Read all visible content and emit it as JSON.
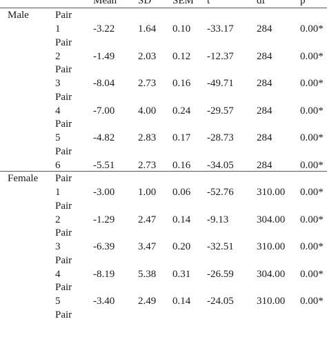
{
  "columns": [
    "Mean",
    "SD",
    "SEM",
    "t",
    "df",
    "p"
  ],
  "groups": [
    {
      "label": "Male",
      "rows": [
        {
          "pair": "Pair",
          "num": "1",
          "mean": "-3.22",
          "sd": "1.64",
          "sem": "0.10",
          "t": "-33.17",
          "df": "284",
          "p": "0.00*"
        },
        {
          "pair": "Pair",
          "num": "2",
          "mean": "-1.49",
          "sd": "2.03",
          "sem": "0.12",
          "t": "-12.37",
          "df": "284",
          "p": "0.00*"
        },
        {
          "pair": "Pair",
          "num": "3",
          "mean": "-8.04",
          "sd": "2.73",
          "sem": "0.16",
          "t": "-49.71",
          "df": "284",
          "p": "0.00*"
        },
        {
          "pair": "Pair",
          "num": "4",
          "mean": "-7.00",
          "sd": "4.00",
          "sem": "0.24",
          "t": "-29.57",
          "df": "284",
          "p": "0.00*"
        },
        {
          "pair": "Pair",
          "num": "5",
          "mean": "-4.82",
          "sd": "2.83",
          "sem": "0.17",
          "t": "-28.73",
          "df": "284",
          "p": "0.00*"
        },
        {
          "pair": "Pair",
          "num": "6",
          "mean": "-5.51",
          "sd": "2.73",
          "sem": "0.16",
          "t": "-34.05",
          "df": "284",
          "p": "0.00*"
        }
      ]
    },
    {
      "label": "Female",
      "rows": [
        {
          "pair": "Pair",
          "num": "1",
          "mean": "-3.00",
          "sd": "1.00",
          "sem": "0.06",
          "t": "-52.76",
          "df": "310.00",
          "p": "0.00*"
        },
        {
          "pair": "Pair",
          "num": "2",
          "mean": "-1.29",
          "sd": "2.47",
          "sem": "0.14",
          "t": "-9.13",
          "df": "304.00",
          "p": "0.00*"
        },
        {
          "pair": "Pair",
          "num": "3",
          "mean": "-6.39",
          "sd": "3.47",
          "sem": "0.20",
          "t": "-32.51",
          "df": "310.00",
          "p": "0.00*"
        },
        {
          "pair": "Pair",
          "num": "4",
          "mean": "-8.19",
          "sd": "5.38",
          "sem": "0.31",
          "t": "-26.59",
          "df": "304.00",
          "p": "0.00*"
        },
        {
          "pair": "Pair",
          "num": "5",
          "mean": "-3.40",
          "sd": "2.49",
          "sem": "0.14",
          "t": "-24.05",
          "df": "310.00",
          "p": "0.00*"
        },
        {
          "pair": "Pair",
          "num": "",
          "mean": "",
          "sd": "",
          "sem": "",
          "t": "",
          "df": "",
          "p": ""
        }
      ]
    }
  ]
}
